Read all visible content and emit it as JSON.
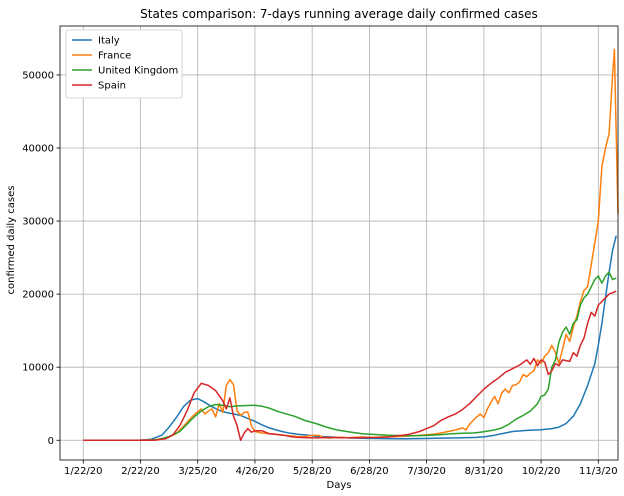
{
  "chart_data": {
    "type": "line",
    "title": "States comparison: 7-days running average daily confirmed cases",
    "xlabel": "Days",
    "ylabel": "confirmed daily cases",
    "x_tick_labels": [
      "1/22/20",
      "2/22/20",
      "3/25/20",
      "4/26/20",
      "5/28/20",
      "6/28/20",
      "7/30/20",
      "8/31/20",
      "10/2/20",
      "11/3/20"
    ],
    "y_ticks": [
      0,
      10000,
      20000,
      30000,
      40000,
      50000
    ],
    "ylim": [
      -2700,
      56700
    ],
    "xlim": [
      -13,
      299
    ],
    "grid": true,
    "legend_position": "top-left",
    "series": [
      {
        "name": "Italy",
        "color": "#1f77b4",
        "points": [
          [
            0,
            0
          ],
          [
            20,
            0
          ],
          [
            31,
            5
          ],
          [
            38,
            150
          ],
          [
            44,
            700
          ],
          [
            48,
            1800
          ],
          [
            52,
            3100
          ],
          [
            56,
            4600
          ],
          [
            60,
            5500
          ],
          [
            64,
            5700
          ],
          [
            68,
            5200
          ],
          [
            72,
            4600
          ],
          [
            76,
            4100
          ],
          [
            80,
            3800
          ],
          [
            84,
            3600
          ],
          [
            88,
            3400
          ],
          [
            92,
            3000
          ],
          [
            96,
            2600
          ],
          [
            100,
            2100
          ],
          [
            104,
            1700
          ],
          [
            108,
            1400
          ],
          [
            112,
            1150
          ],
          [
            116,
            950
          ],
          [
            120,
            820
          ],
          [
            126,
            700
          ],
          [
            130,
            560
          ],
          [
            140,
            430
          ],
          [
            150,
            310
          ],
          [
            160,
            250
          ],
          [
            170,
            230
          ],
          [
            180,
            220
          ],
          [
            190,
            240
          ],
          [
            200,
            300
          ],
          [
            210,
            330
          ],
          [
            220,
            400
          ],
          [
            225,
            500
          ],
          [
            230,
            700
          ],
          [
            236,
            1000
          ],
          [
            240,
            1200
          ],
          [
            248,
            1350
          ],
          [
            256,
            1450
          ],
          [
            262,
            1600
          ],
          [
            266,
            1800
          ],
          [
            270,
            2300
          ],
          [
            274,
            3300
          ],
          [
            278,
            5000
          ],
          [
            282,
            7500
          ],
          [
            286,
            10500
          ],
          [
            288,
            13000
          ],
          [
            290,
            16000
          ],
          [
            292,
            19500
          ],
          [
            294,
            23000
          ],
          [
            296,
            26000
          ],
          [
            298,
            28000
          ]
        ]
      },
      {
        "name": "France",
        "color": "#ff7f0e",
        "points": [
          [
            0,
            0
          ],
          [
            30,
            0
          ],
          [
            40,
            80
          ],
          [
            46,
            300
          ],
          [
            52,
            900
          ],
          [
            56,
            1900
          ],
          [
            60,
            3000
          ],
          [
            63,
            3700
          ],
          [
            66,
            4300
          ],
          [
            68,
            3600
          ],
          [
            70,
            4000
          ],
          [
            72,
            4300
          ],
          [
            74,
            3200
          ],
          [
            76,
            5000
          ],
          [
            78,
            3800
          ],
          [
            80,
            7500
          ],
          [
            82,
            8300
          ],
          [
            84,
            7600
          ],
          [
            86,
            4000
          ],
          [
            88,
            3400
          ],
          [
            90,
            3800
          ],
          [
            92,
            3900
          ],
          [
            94,
            2000
          ],
          [
            96,
            1200
          ],
          [
            100,
            1000
          ],
          [
            104,
            900
          ],
          [
            108,
            800
          ],
          [
            112,
            700
          ],
          [
            116,
            600
          ],
          [
            120,
            500
          ],
          [
            124,
            520
          ],
          [
            128,
            700
          ],
          [
            132,
            650
          ],
          [
            134,
            400
          ],
          [
            138,
            300
          ],
          [
            140,
            380
          ],
          [
            144,
            420
          ],
          [
            148,
            350
          ],
          [
            152,
            420
          ],
          [
            156,
            450
          ],
          [
            160,
            390
          ],
          [
            164,
            420
          ],
          [
            168,
            450
          ],
          [
            172,
            480
          ],
          [
            176,
            520
          ],
          [
            180,
            550
          ],
          [
            184,
            620
          ],
          [
            188,
            680
          ],
          [
            192,
            760
          ],
          [
            196,
            850
          ],
          [
            200,
            1000
          ],
          [
            204,
            1200
          ],
          [
            208,
            1400
          ],
          [
            212,
            1700
          ],
          [
            214,
            1400
          ],
          [
            216,
            2200
          ],
          [
            218,
            2700
          ],
          [
            220,
            3200
          ],
          [
            222,
            3600
          ],
          [
            224,
            3100
          ],
          [
            226,
            4300
          ],
          [
            228,
            5200
          ],
          [
            230,
            6000
          ],
          [
            232,
            5000
          ],
          [
            234,
            6500
          ],
          [
            236,
            7000
          ],
          [
            238,
            6500
          ],
          [
            240,
            7500
          ],
          [
            242,
            7600
          ],
          [
            244,
            8000
          ],
          [
            246,
            9000
          ],
          [
            248,
            8700
          ],
          [
            250,
            9200
          ],
          [
            252,
            9500
          ],
          [
            254,
            11000
          ],
          [
            256,
            10500
          ],
          [
            258,
            11500
          ],
          [
            260,
            12000
          ],
          [
            262,
            13000
          ],
          [
            264,
            12000
          ],
          [
            266,
            10500
          ],
          [
            268,
            12500
          ],
          [
            270,
            14500
          ],
          [
            272,
            13500
          ],
          [
            274,
            15500
          ],
          [
            276,
            17000
          ],
          [
            278,
            19000
          ],
          [
            280,
            20500
          ],
          [
            282,
            21000
          ],
          [
            284,
            24000
          ],
          [
            286,
            27000
          ],
          [
            288,
            30000
          ],
          [
            290,
            37500
          ],
          [
            292,
            40000
          ],
          [
            294,
            42000
          ],
          [
            296,
            50000
          ],
          [
            297,
            53500
          ],
          [
            298,
            42000
          ],
          [
            299,
            31000
          ]
        ]
      },
      {
        "name": "United Kingdom",
        "color": "#2ca02c",
        "points": [
          [
            0,
            0
          ],
          [
            35,
            0
          ],
          [
            42,
            100
          ],
          [
            48,
            500
          ],
          [
            54,
            1200
          ],
          [
            58,
            2200
          ],
          [
            62,
            3200
          ],
          [
            66,
            4000
          ],
          [
            70,
            4600
          ],
          [
            74,
            4900
          ],
          [
            78,
            4800
          ],
          [
            82,
            4600
          ],
          [
            86,
            4700
          ],
          [
            90,
            4750
          ],
          [
            96,
            4800
          ],
          [
            100,
            4650
          ],
          [
            104,
            4400
          ],
          [
            108,
            4000
          ],
          [
            112,
            3700
          ],
          [
            118,
            3300
          ],
          [
            124,
            2700
          ],
          [
            130,
            2300
          ],
          [
            136,
            1800
          ],
          [
            142,
            1400
          ],
          [
            150,
            1100
          ],
          [
            156,
            900
          ],
          [
            162,
            800
          ],
          [
            170,
            700
          ],
          [
            176,
            650
          ],
          [
            182,
            620
          ],
          [
            188,
            640
          ],
          [
            194,
            700
          ],
          [
            200,
            780
          ],
          [
            206,
            880
          ],
          [
            212,
            950
          ],
          [
            218,
            1000
          ],
          [
            222,
            1100
          ],
          [
            226,
            1250
          ],
          [
            230,
            1400
          ],
          [
            234,
            1700
          ],
          [
            238,
            2200
          ],
          [
            242,
            2900
          ],
          [
            246,
            3400
          ],
          [
            250,
            4000
          ],
          [
            254,
            5000
          ],
          [
            256,
            6000
          ],
          [
            258,
            6200
          ],
          [
            260,
            7000
          ],
          [
            262,
            10000
          ],
          [
            264,
            11000
          ],
          [
            266,
            13500
          ],
          [
            268,
            14800
          ],
          [
            270,
            15500
          ],
          [
            272,
            14500
          ],
          [
            274,
            16000
          ],
          [
            276,
            16500
          ],
          [
            278,
            18500
          ],
          [
            280,
            19500
          ],
          [
            282,
            20000
          ],
          [
            284,
            21000
          ],
          [
            286,
            22000
          ],
          [
            288,
            22500
          ],
          [
            290,
            21500
          ],
          [
            292,
            22500
          ],
          [
            294,
            23000
          ],
          [
            296,
            22000
          ],
          [
            298,
            22200
          ]
        ]
      },
      {
        "name": "Spain",
        "color": "#d62728",
        "points": [
          [
            0,
            0
          ],
          [
            40,
            0
          ],
          [
            46,
            200
          ],
          [
            50,
            700
          ],
          [
            54,
            2000
          ],
          [
            58,
            4000
          ],
          [
            62,
            6500
          ],
          [
            66,
            7800
          ],
          [
            70,
            7500
          ],
          [
            74,
            6800
          ],
          [
            78,
            5400
          ],
          [
            80,
            4300
          ],
          [
            82,
            5800
          ],
          [
            84,
            3300
          ],
          [
            86,
            2000
          ],
          [
            88,
            0
          ],
          [
            90,
            1000
          ],
          [
            92,
            1600
          ],
          [
            94,
            1100
          ],
          [
            96,
            1300
          ],
          [
            100,
            1300
          ],
          [
            104,
            900
          ],
          [
            108,
            800
          ],
          [
            112,
            700
          ],
          [
            116,
            500
          ],
          [
            120,
            400
          ],
          [
            126,
            350
          ],
          [
            132,
            330
          ],
          [
            136,
            380
          ],
          [
            140,
            360
          ],
          [
            146,
            340
          ],
          [
            152,
            350
          ],
          [
            158,
            380
          ],
          [
            164,
            400
          ],
          [
            170,
            450
          ],
          [
            176,
            600
          ],
          [
            182,
            800
          ],
          [
            188,
            1200
          ],
          [
            192,
            1600
          ],
          [
            196,
            2000
          ],
          [
            200,
            2700
          ],
          [
            204,
            3200
          ],
          [
            208,
            3600
          ],
          [
            212,
            4200
          ],
          [
            216,
            5000
          ],
          [
            220,
            6000
          ],
          [
            224,
            7000
          ],
          [
            228,
            7800
          ],
          [
            232,
            8500
          ],
          [
            236,
            9300
          ],
          [
            240,
            9800
          ],
          [
            244,
            10300
          ],
          [
            248,
            11000
          ],
          [
            250,
            10400
          ],
          [
            252,
            11200
          ],
          [
            254,
            10200
          ],
          [
            256,
            11000
          ],
          [
            258,
            10700
          ],
          [
            260,
            9000
          ],
          [
            262,
            9500
          ],
          [
            264,
            10500
          ],
          [
            266,
            10200
          ],
          [
            268,
            11000
          ],
          [
            270,
            10900
          ],
          [
            272,
            10800
          ],
          [
            274,
            12000
          ],
          [
            276,
            11500
          ],
          [
            278,
            13000
          ],
          [
            280,
            14000
          ],
          [
            282,
            16000
          ],
          [
            284,
            17500
          ],
          [
            286,
            17000
          ],
          [
            288,
            18500
          ],
          [
            290,
            19000
          ],
          [
            292,
            19500
          ],
          [
            294,
            20000
          ],
          [
            296,
            20200
          ],
          [
            298,
            20400
          ]
        ]
      }
    ]
  }
}
